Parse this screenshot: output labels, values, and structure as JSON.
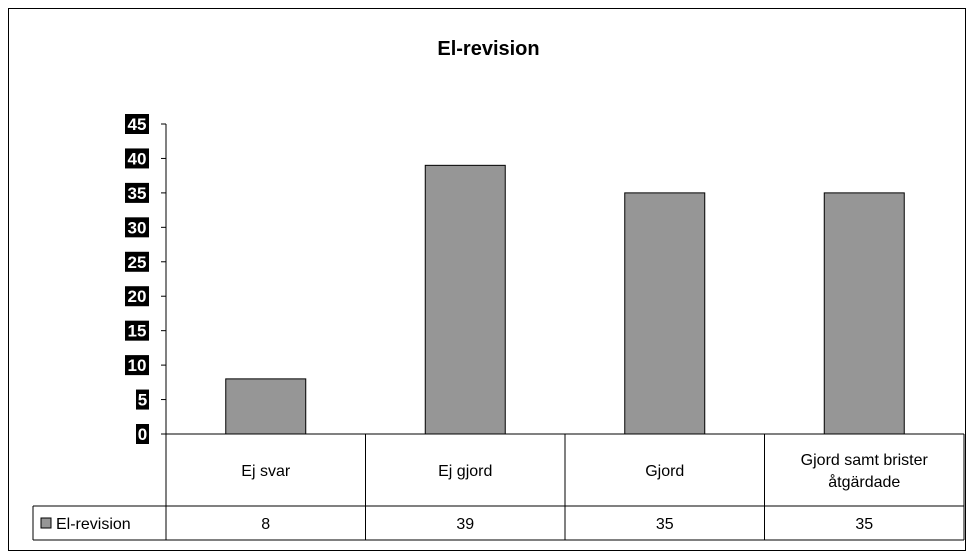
{
  "chart_data": {
    "type": "bar",
    "title": "El-revision",
    "categories": [
      "Ej svar",
      "Ej gjord",
      "Gjord",
      "Gjord samt brister åtgärdade"
    ],
    "category_lines": [
      [
        "Ej svar"
      ],
      [
        "Ej gjord"
      ],
      [
        "Gjord"
      ],
      [
        "Gjord samt brister",
        "åtgärdade"
      ]
    ],
    "series": [
      {
        "name": "El-revision",
        "values": [
          8,
          39,
          35,
          35
        ],
        "color": "#969696"
      }
    ],
    "yticks": [
      "0",
      "5",
      "10",
      "15",
      "20",
      "25",
      "30",
      "35",
      "40",
      "45"
    ],
    "ylim": [
      0,
      45
    ],
    "grid": false,
    "legend": "data-table-left",
    "data_table": {
      "legend_label": "El-revision",
      "row_values": [
        "8",
        "39",
        "35",
        "35"
      ]
    }
  }
}
